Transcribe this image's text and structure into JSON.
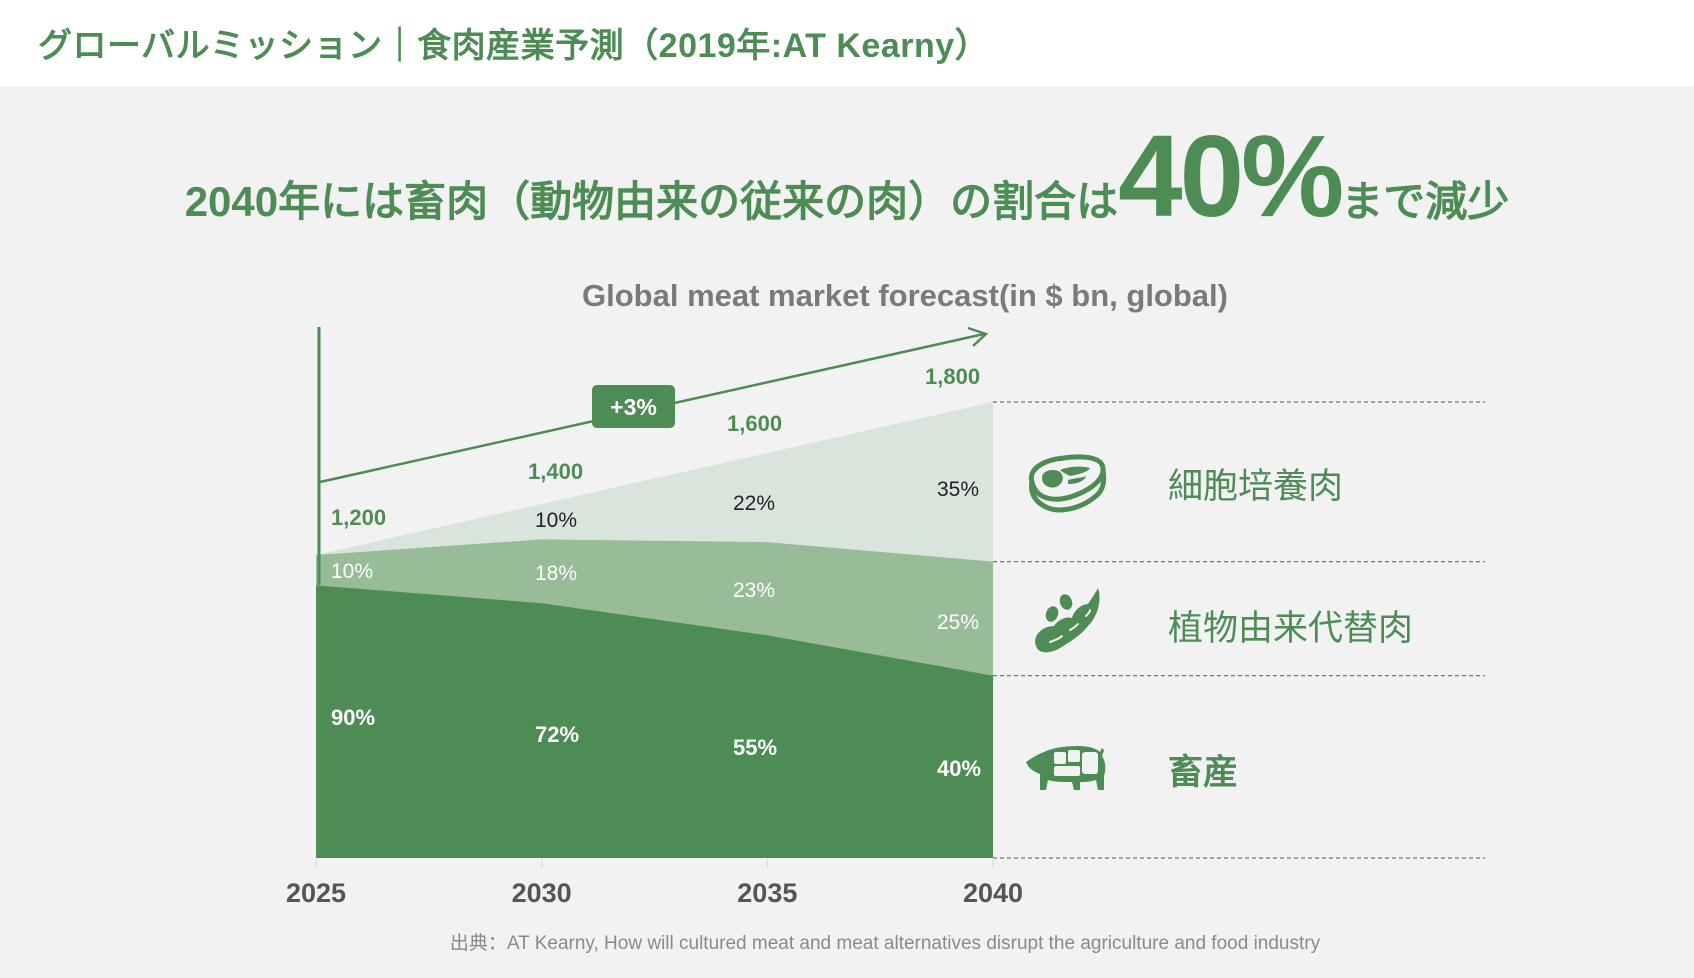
{
  "header": {
    "title": "グローバルミッション｜食肉産業予測（2019年:AT Kearny）"
  },
  "headline": {
    "prefix": "2040年には畜肉（動物由来の従来の肉）の割合は",
    "emphasis": "40%",
    "suffix": "まで減少"
  },
  "colors": {
    "brand_green": "#4e8c55",
    "livestock": "#4e8c55",
    "plant_based": "#98bb98",
    "cultured": "#d9e4dc",
    "background": "#f2f2f2"
  },
  "chart_data": {
    "type": "area",
    "stacked": true,
    "title": "Global meat market forecast(in $ bn, global)",
    "xlabel": "",
    "ylabel": "",
    "categories": [
      "2025",
      "2030",
      "2035",
      "2040"
    ],
    "totals": [
      1200,
      1400,
      1600,
      1800
    ],
    "total_labels": [
      "1,200",
      "1,400",
      "1,600",
      "1,800"
    ],
    "series": [
      {
        "name": "畜産",
        "key": "livestock",
        "values_pct": [
          90,
          72,
          55,
          40
        ],
        "labels": [
          "90%",
          "72%",
          "55%",
          "40%"
        ]
      },
      {
        "name": "植物由来代替肉",
        "key": "plant_based",
        "values_pct": [
          10,
          18,
          23,
          25
        ],
        "labels": [
          "10%",
          "18%",
          "23%",
          "25%"
        ]
      },
      {
        "name": "細胞培養肉",
        "key": "cultured",
        "values_pct": [
          0,
          10,
          22,
          35
        ],
        "labels": [
          "",
          "10%",
          "22%",
          "35%"
        ]
      }
    ],
    "trend_annotation": "+3%",
    "grid": false,
    "legend": "right"
  },
  "legend": [
    {
      "label": "細胞培養肉",
      "icon": "steak-icon"
    },
    {
      "label": "植物由来代替肉",
      "icon": "soybean-icon"
    },
    {
      "label": "畜産",
      "icon": "pig-icon"
    }
  ],
  "source": "出典：AT Kearny, How will cultured meat and meat alternatives disrupt the agriculture and food industry"
}
